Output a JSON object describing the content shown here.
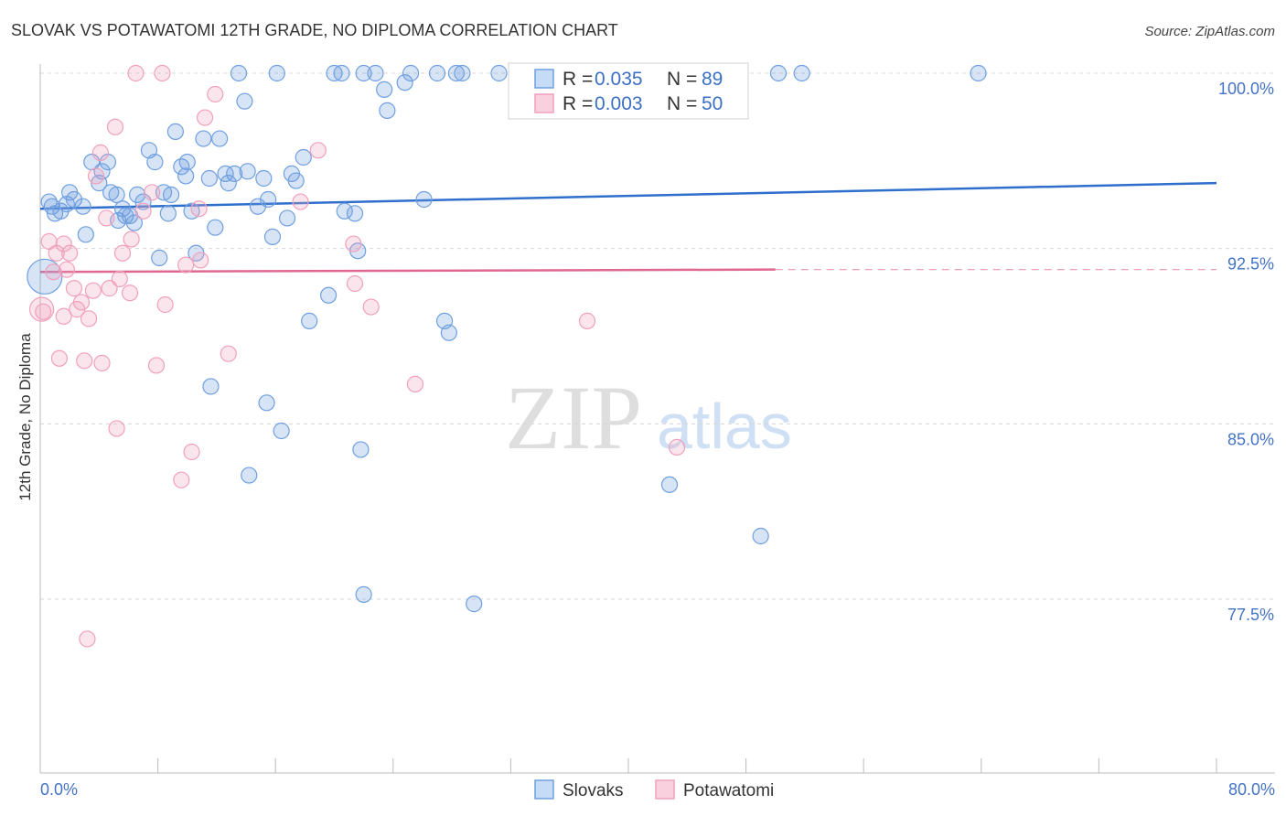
{
  "title": "SLOVAK VS POTAWATOMI 12TH GRADE, NO DIPLOMA CORRELATION CHART",
  "source": "Source: ZipAtlas.com",
  "watermark": {
    "part1": "ZIP",
    "part2": "atlas"
  },
  "colors": {
    "slovaks": "#6f9fe0",
    "potawatomi": "#f0a0bc",
    "slovaks_line": "#2f6fcc",
    "potawatomi_line": "#e06890",
    "tick": "#4472c4"
  },
  "legend": {
    "items": [
      {
        "r_label": "R =",
        "r_value": "0.035",
        "n_label": "N =",
        "n_value": "89"
      },
      {
        "r_label": "R =",
        "r_value": "0.003",
        "n_label": "N =",
        "n_value": "50"
      }
    ]
  },
  "bottom_legend": [
    "Slovaks",
    "Potawatomi"
  ],
  "chart_data": {
    "type": "scatter",
    "title": "SLOVAK VS POTAWATOMI 12TH GRADE, NO DIPLOMA CORRELATION CHART",
    "xlabel": "",
    "ylabel": "12th Grade, No Diploma",
    "x_tick_labels": [
      "0.0%",
      "80.0%"
    ],
    "y_tick_labels": [
      "100.0%",
      "92.5%",
      "85.0%",
      "77.5%"
    ],
    "y_ticks": [
      100.0,
      92.5,
      85.0,
      77.5
    ],
    "xlim": [
      0,
      80
    ],
    "ylim": [
      70.0,
      100.6
    ],
    "grid": true,
    "legend_position": "top-center",
    "series": [
      {
        "name": "Slovaks",
        "color": "#6f9fe0",
        "trend": {
          "x": [
            0,
            80
          ],
          "y": [
            94.2,
            95.3
          ]
        },
        "points": [
          [
            0.6,
            94.5
          ],
          [
            0.8,
            94.3
          ],
          [
            1.0,
            94.0
          ],
          [
            1.4,
            94.1
          ],
          [
            1.8,
            94.4
          ],
          [
            2.0,
            94.9
          ],
          [
            2.3,
            94.6
          ],
          [
            2.9,
            94.3
          ],
          [
            3.1,
            93.1
          ],
          [
            3.5,
            96.2
          ],
          [
            4.0,
            95.3
          ],
          [
            4.2,
            95.8
          ],
          [
            4.6,
            96.2
          ],
          [
            4.8,
            94.9
          ],
          [
            5.2,
            94.8
          ],
          [
            5.3,
            93.7
          ],
          [
            5.6,
            94.2
          ],
          [
            5.8,
            93.9
          ],
          [
            6.1,
            93.9
          ],
          [
            6.4,
            93.6
          ],
          [
            6.6,
            94.8
          ],
          [
            7.0,
            94.5
          ],
          [
            7.4,
            96.7
          ],
          [
            7.8,
            96.2
          ],
          [
            8.1,
            92.1
          ],
          [
            8.4,
            94.9
          ],
          [
            8.7,
            94.0
          ],
          [
            8.9,
            94.8
          ],
          [
            9.2,
            97.5
          ],
          [
            9.6,
            96.0
          ],
          [
            9.9,
            95.6
          ],
          [
            10.0,
            96.2
          ],
          [
            10.3,
            94.1
          ],
          [
            10.6,
            92.3
          ],
          [
            11.1,
            97.2
          ],
          [
            11.5,
            95.5
          ],
          [
            11.9,
            93.4
          ],
          [
            12.2,
            97.2
          ],
          [
            12.6,
            95.7
          ],
          [
            12.8,
            95.3
          ],
          [
            13.2,
            95.7
          ],
          [
            13.5,
            100.0
          ],
          [
            13.9,
            98.8
          ],
          [
            14.1,
            95.8
          ],
          [
            14.8,
            94.3
          ],
          [
            15.2,
            95.5
          ],
          [
            15.5,
            94.6
          ],
          [
            15.8,
            93.0
          ],
          [
            16.1,
            100.0
          ],
          [
            16.8,
            93.8
          ],
          [
            17.1,
            95.7
          ],
          [
            17.4,
            95.4
          ],
          [
            17.9,
            96.4
          ],
          [
            18.3,
            89.4
          ],
          [
            19.6,
            90.5
          ],
          [
            20.0,
            100.0
          ],
          [
            20.5,
            100.0
          ],
          [
            20.7,
            94.1
          ],
          [
            21.4,
            94.0
          ],
          [
            21.6,
            92.4
          ],
          [
            22.0,
            100.0
          ],
          [
            21.8,
            83.9
          ],
          [
            22.8,
            100.0
          ],
          [
            23.4,
            99.3
          ],
          [
            23.6,
            98.4
          ],
          [
            24.8,
            99.6
          ],
          [
            25.2,
            100.0
          ],
          [
            26.1,
            94.6
          ],
          [
            27.0,
            100.0
          ],
          [
            27.5,
            89.4
          ],
          [
            27.8,
            88.9
          ],
          [
            28.3,
            100.0
          ],
          [
            28.7,
            100.0
          ],
          [
            29.5,
            77.3
          ],
          [
            31.2,
            100.0
          ],
          [
            33.5,
            100.0
          ],
          [
            35.0,
            100.0
          ],
          [
            36.2,
            100.0
          ],
          [
            38.2,
            100.0
          ],
          [
            40.5,
            100.0
          ],
          [
            42.8,
            82.4
          ],
          [
            49.0,
            80.2
          ],
          [
            50.2,
            100.0
          ],
          [
            51.8,
            100.0
          ],
          [
            63.8,
            100.0
          ],
          [
            11.6,
            86.6
          ],
          [
            15.4,
            85.9
          ],
          [
            14.2,
            82.8
          ],
          [
            16.4,
            84.7
          ],
          [
            22.0,
            77.7
          ],
          [
            0.3,
            91.3
          ]
        ],
        "sizes": {
          "last": "large"
        }
      },
      {
        "name": "Potawatomi",
        "color": "#f0a0bc",
        "trend": {
          "x": [
            0,
            50
          ],
          "y": [
            91.5,
            91.6
          ]
        },
        "points": [
          [
            0.1,
            89.9
          ],
          [
            0.6,
            92.8
          ],
          [
            0.9,
            91.5
          ],
          [
            1.1,
            92.3
          ],
          [
            1.3,
            87.8
          ],
          [
            1.6,
            89.6
          ],
          [
            1.8,
            91.6
          ],
          [
            2.0,
            92.3
          ],
          [
            2.3,
            90.8
          ],
          [
            2.5,
            89.9
          ],
          [
            2.8,
            90.2
          ],
          [
            3.0,
            87.7
          ],
          [
            3.3,
            89.5
          ],
          [
            3.6,
            90.7
          ],
          [
            3.8,
            95.6
          ],
          [
            4.2,
            87.6
          ],
          [
            4.1,
            96.6
          ],
          [
            4.5,
            93.8
          ],
          [
            4.7,
            90.8
          ],
          [
            5.1,
            97.7
          ],
          [
            5.2,
            84.8
          ],
          [
            5.4,
            91.2
          ],
          [
            5.6,
            92.3
          ],
          [
            6.1,
            90.6
          ],
          [
            6.5,
            100.0
          ],
          [
            7.0,
            94.1
          ],
          [
            7.6,
            94.9
          ],
          [
            7.9,
            87.5
          ],
          [
            8.3,
            100.0
          ],
          [
            8.5,
            90.1
          ],
          [
            9.6,
            82.6
          ],
          [
            9.9,
            91.8
          ],
          [
            10.3,
            83.8
          ],
          [
            10.8,
            94.2
          ],
          [
            11.2,
            98.1
          ],
          [
            11.9,
            99.1
          ],
          [
            12.8,
            88.0
          ],
          [
            17.7,
            94.5
          ],
          [
            18.9,
            96.7
          ],
          [
            21.3,
            92.7
          ],
          [
            21.4,
            91.0
          ],
          [
            22.5,
            90.0
          ],
          [
            25.5,
            86.7
          ],
          [
            37.2,
            89.4
          ],
          [
            43.3,
            84.0
          ],
          [
            3.2,
            75.8
          ],
          [
            1.6,
            92.7
          ],
          [
            6.2,
            92.9
          ],
          [
            0.2,
            89.8
          ],
          [
            10.9,
            92.0
          ]
        ]
      }
    ]
  }
}
